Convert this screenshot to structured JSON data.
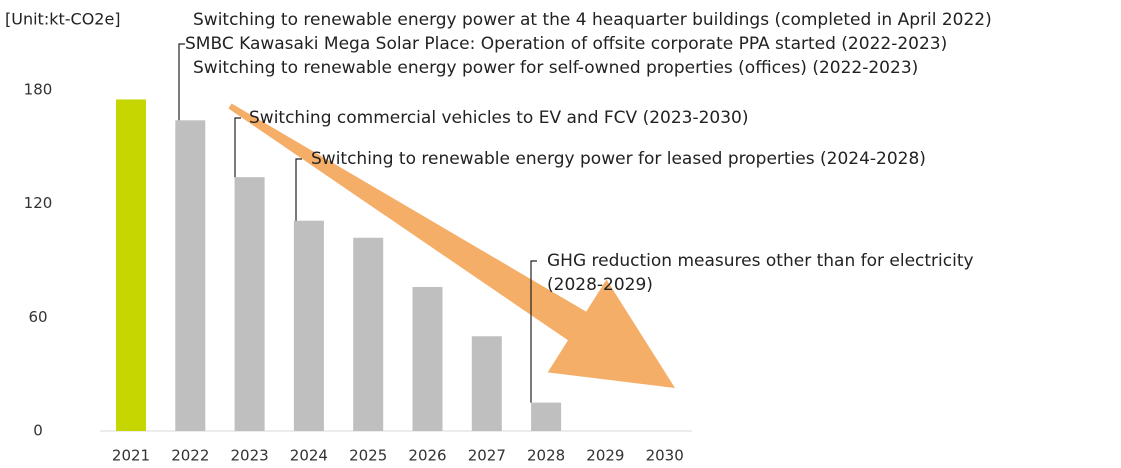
{
  "chart_data": {
    "type": "bar",
    "y_label": "[Unit:kt-CO2e]",
    "categories": [
      "2021",
      "2022",
      "2023",
      "2024",
      "2025",
      "2026",
      "2027",
      "2028",
      "2029",
      "2030"
    ],
    "values": [
      175,
      164,
      134,
      111,
      102,
      76,
      50,
      15,
      0,
      0
    ],
    "colors": [
      "#c5d600",
      "#bfbfbf",
      "#bfbfbf",
      "#bfbfbf",
      "#bfbfbf",
      "#bfbfbf",
      "#bfbfbf",
      "#bfbfbf",
      "#bfbfbf",
      "#bfbfbf"
    ],
    "ylim": [
      0,
      180
    ],
    "yticks": [
      0,
      60,
      120,
      180
    ],
    "grid": false,
    "arrow_color": "#f5ae68",
    "annotations": [
      {
        "lines": [
          "Switching to renewable energy power at the 4 heaquarter buildings (completed in April 2022)",
          "SMBC Kawasaki Mega Solar Place: Operation of offsite corporate PPA started (2022-2023)",
          "Switching to renewable energy power for self-owned properties (offices) (2022-2023)"
        ]
      },
      {
        "lines": [
          "Switching commercial vehicles to EV and FCV (2023-2030)"
        ]
      },
      {
        "lines": [
          "Switching to renewable energy power for leased properties (2024-2028)"
        ]
      },
      {
        "lines": [
          "GHG reduction measures other than for electricity",
          "(2028-2029)"
        ]
      }
    ]
  }
}
